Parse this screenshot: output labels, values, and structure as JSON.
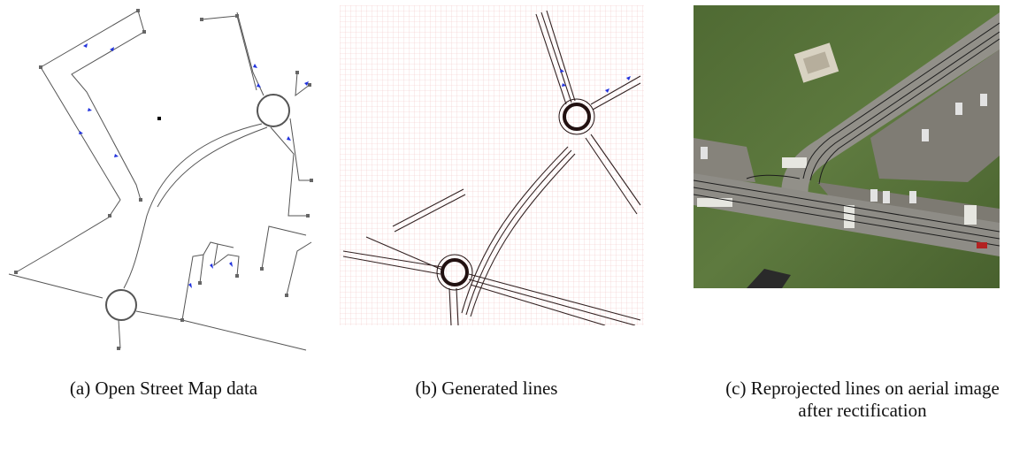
{
  "captions": {
    "a": "(a) Open Street Map data",
    "b": "(b) Generated lines",
    "c_line1": "(c) Reprojected lines on aerial image",
    "c_line2": "after rectification"
  },
  "colors": {
    "line": "#555555",
    "arrow": "#2233dd",
    "generated_line": "#332222",
    "grid": "#f3c9c9",
    "aerial_grass": "#55703a",
    "aerial_road": "#8e8c86",
    "aerial_parking": "#7c7a74"
  }
}
